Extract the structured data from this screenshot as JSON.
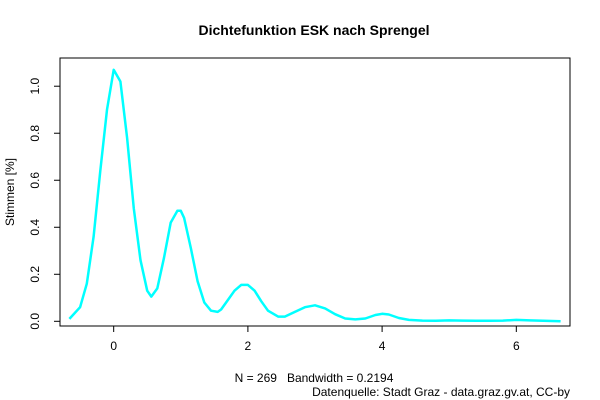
{
  "chart_data": {
    "type": "line",
    "title": "Dichtefunktion ESK nach Sprengel",
    "xlabel": "N = 269   Bandwidth = 0.2194",
    "ylabel": "Stimmen [%]",
    "source_note": "Datenquelle: Stadt Graz - data.graz.gv.at, CC-by",
    "xlim": [
      -0.8,
      6.8
    ],
    "ylim": [
      -0.02,
      1.12
    ],
    "x_ticks": [
      0,
      2,
      4,
      6
    ],
    "y_ticks": [
      0.0,
      0.2,
      0.4,
      0.6,
      0.8,
      1.0
    ],
    "x_tick_labels": [
      "0",
      "2",
      "4",
      "6"
    ],
    "y_tick_labels": [
      "0.0",
      "0.2",
      "0.4",
      "0.6",
      "0.8",
      "1.0"
    ],
    "grid": false,
    "legend": "none",
    "line_color": "#00ffff",
    "series": [
      {
        "x": [
          -0.66,
          -0.5,
          -0.4,
          -0.3,
          -0.2,
          -0.1,
          0.0,
          0.1,
          0.2,
          0.3,
          0.4,
          0.5,
          0.56,
          0.65,
          0.75,
          0.85,
          0.95,
          1.0,
          1.05,
          1.15,
          1.25,
          1.35,
          1.45,
          1.55,
          1.6,
          1.7,
          1.8,
          1.9,
          2.0,
          2.1,
          2.2,
          2.3,
          2.45,
          2.55,
          2.7,
          2.85,
          3.0,
          3.15,
          3.3,
          3.45,
          3.6,
          3.75,
          3.9,
          4.0,
          4.1,
          4.25,
          4.4,
          4.6,
          4.8,
          5.0,
          5.2,
          5.4,
          5.6,
          5.8,
          6.0,
          6.2,
          6.4,
          6.66
        ],
        "y": [
          0.01,
          0.06,
          0.16,
          0.36,
          0.64,
          0.9,
          1.07,
          1.02,
          0.78,
          0.48,
          0.26,
          0.13,
          0.105,
          0.14,
          0.27,
          0.42,
          0.47,
          0.47,
          0.44,
          0.31,
          0.17,
          0.08,
          0.045,
          0.04,
          0.05,
          0.09,
          0.13,
          0.155,
          0.155,
          0.13,
          0.085,
          0.045,
          0.02,
          0.02,
          0.04,
          0.06,
          0.068,
          0.055,
          0.03,
          0.012,
          0.008,
          0.012,
          0.027,
          0.032,
          0.029,
          0.014,
          0.006,
          0.003,
          0.002,
          0.004,
          0.003,
          0.002,
          0.002,
          0.003,
          0.006,
          0.004,
          0.002,
          0.0
        ]
      }
    ]
  }
}
